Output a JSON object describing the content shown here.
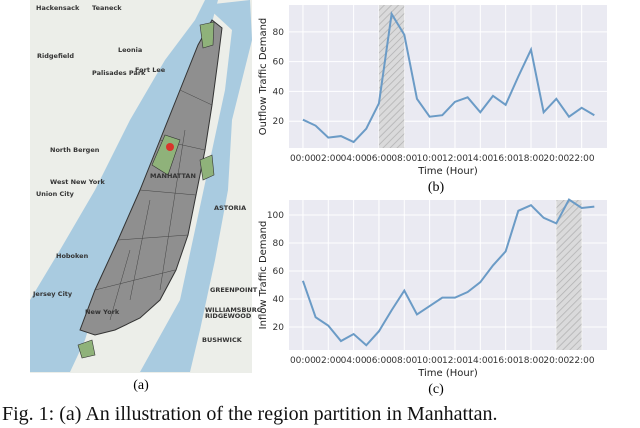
{
  "map": {
    "panel_label": "(a)",
    "labels": [
      "Hackensack",
      "Teaneck",
      "Leonia",
      "Ridgefield",
      "Fort Lee",
      "Palisades Park",
      "North Bergen",
      "West New York",
      "Union City",
      "Hoboken",
      "Jersey City",
      "New York",
      "MANHATTAN",
      "ASTORIA",
      "GREENPOINT",
      "WILLIAMSBURG",
      "RIDGEWOOD",
      "BUSHWICK"
    ]
  },
  "chart_data": [
    {
      "type": "line",
      "panel_label": "(b)",
      "xlabel": "Time (Hour)",
      "ylabel": "Outflow Traffic Demand",
      "x": [
        0,
        1,
        2,
        3,
        4,
        5,
        6,
        7,
        8,
        9,
        10,
        11,
        12,
        13,
        14,
        15,
        16,
        17,
        18,
        19,
        20,
        21,
        22,
        23
      ],
      "series": [
        {
          "color": "#6b9bc6",
          "values": [
            21,
            17,
            9,
            10,
            6,
            15,
            32,
            92,
            78,
            35,
            23,
            24,
            33,
            36,
            26,
            37,
            31,
            50,
            68,
            26,
            35,
            23,
            29,
            24
          ]
        }
      ],
      "highlight": [
        6,
        8
      ],
      "xlim": [
        -1.1,
        24
      ],
      "ylim": [
        2,
        98
      ],
      "xticks": [
        {
          "value": 0,
          "label": "00:00"
        },
        {
          "value": 2,
          "label": "02:00"
        },
        {
          "value": 4,
          "label": "04:00"
        },
        {
          "value": 6,
          "label": "06:00"
        },
        {
          "value": 8,
          "label": "08:00"
        },
        {
          "value": 10,
          "label": "10:00"
        },
        {
          "value": 12,
          "label": "12:00"
        },
        {
          "value": 14,
          "label": "14:00"
        },
        {
          "value": 16,
          "label": "16:00"
        },
        {
          "value": 18,
          "label": "18:00"
        },
        {
          "value": 20,
          "label": "20:00"
        },
        {
          "value": 22,
          "label": "22:00"
        }
      ],
      "yticks": [
        20,
        40,
        60,
        80
      ],
      "grid": true
    },
    {
      "type": "line",
      "panel_label": "(c)",
      "xlabel": "Time (Hour)",
      "ylabel": "Inflow Traffic Demand",
      "x": [
        0,
        1,
        2,
        3,
        4,
        5,
        6,
        7,
        8,
        9,
        10,
        11,
        12,
        13,
        14,
        15,
        16,
        17,
        18,
        19,
        20,
        21,
        22,
        23
      ],
      "series": [
        {
          "color": "#6b9bc6",
          "values": [
            53,
            27,
            21,
            10,
            15,
            7,
            17,
            32,
            46,
            29,
            35,
            41,
            41,
            45,
            52,
            64,
            74,
            103,
            107,
            98,
            94,
            111,
            105,
            106
          ]
        }
      ],
      "highlight": [
        20,
        22
      ],
      "xlim": [
        -1.1,
        24
      ],
      "ylim": [
        3.6,
        110.7
      ],
      "xticks": [
        {
          "value": 0,
          "label": "00:00"
        },
        {
          "value": 2,
          "label": "02:00"
        },
        {
          "value": 4,
          "label": "04:00"
        },
        {
          "value": 6,
          "label": "06:00"
        },
        {
          "value": 8,
          "label": "08:00"
        },
        {
          "value": 10,
          "label": "10:00"
        },
        {
          "value": 12,
          "label": "12:00"
        },
        {
          "value": 14,
          "label": "14:00"
        },
        {
          "value": 16,
          "label": "16:00"
        },
        {
          "value": 18,
          "label": "18:00"
        },
        {
          "value": 20,
          "label": "20:00"
        },
        {
          "value": 22,
          "label": "22:00"
        }
      ],
      "yticks": [
        20,
        40,
        60,
        80,
        100
      ],
      "grid": true
    }
  ],
  "caption": "Fig. 1: (a) An illustration of the region partition in Manhattan."
}
